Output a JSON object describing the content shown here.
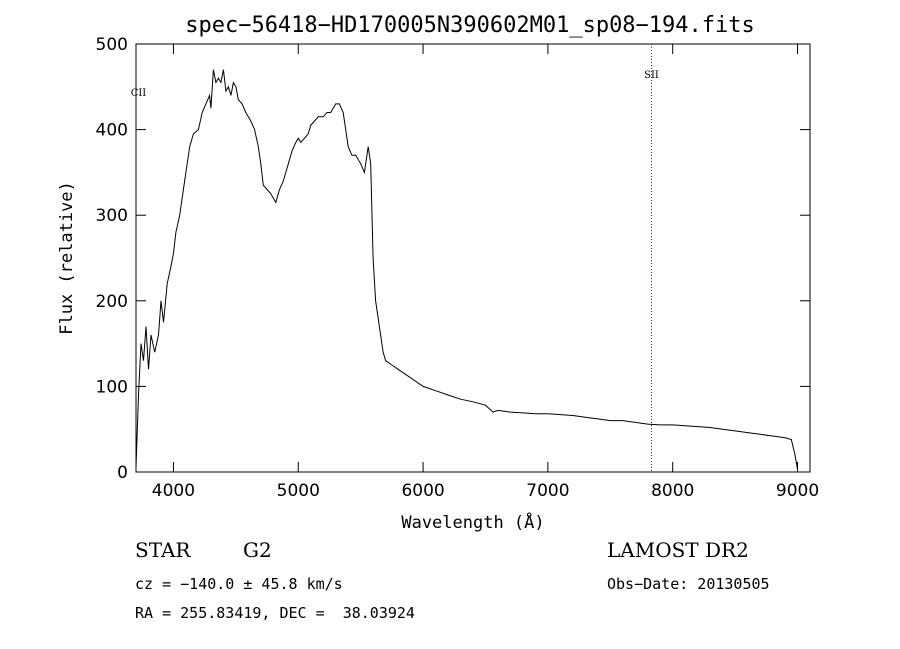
{
  "chart_data": {
    "type": "line",
    "title": "spec−56418−HD170005N390602M01_sp08−194.fits",
    "xlabel": "Wavelength (Å)",
    "ylabel": "Flux (relative)",
    "xlim": [
      3700,
      9100
    ],
    "ylim": [
      0,
      500
    ],
    "xticks": [
      4000,
      5000,
      6000,
      7000,
      8000,
      9000
    ],
    "yticks": [
      0,
      100,
      200,
      300,
      400,
      500
    ],
    "grid": false,
    "line_color": "#000000",
    "series": [
      {
        "x": [
          3700,
          3720,
          3740,
          3760,
          3780,
          3800,
          3820,
          3850,
          3880,
          3900,
          3920,
          3950,
          3980,
          4000,
          4020,
          4050,
          4080,
          4100,
          4130,
          4160,
          4200,
          4230,
          4260,
          4290,
          4300,
          4320,
          4340,
          4360,
          4380,
          4400,
          4420,
          4440,
          4460,
          4480,
          4500,
          4520,
          4550,
          4580,
          4600,
          4620,
          4650,
          4680,
          4700,
          4720,
          4750,
          4780,
          4800,
          4820,
          4850,
          4880,
          4900,
          4920,
          4950,
          4980,
          5000,
          5020,
          5050,
          5080,
          5100,
          5130,
          5160,
          5200,
          5230,
          5260,
          5300,
          5330,
          5360,
          5380,
          5400,
          5430,
          5460,
          5500,
          5530,
          5560,
          5580,
          5600,
          5620,
          5650,
          5680,
          5700,
          5750,
          5800,
          5850,
          5900,
          6000,
          6100,
          6200,
          6300,
          6400,
          6500,
          6560,
          6600,
          6700,
          6800,
          6900,
          7000,
          7100,
          7200,
          7300,
          7400,
          7500,
          7600,
          7700,
          7800,
          7900,
          8000,
          8100,
          8200,
          8300,
          8400,
          8500,
          8600,
          8700,
          8800,
          8900,
          8950,
          8980,
          9000
        ],
        "y": [
          5,
          90,
          150,
          130,
          170,
          120,
          160,
          140,
          160,
          200,
          175,
          220,
          240,
          255,
          280,
          300,
          330,
          350,
          380,
          395,
          400,
          420,
          430,
          440,
          425,
          470,
          455,
          460,
          455,
          470,
          445,
          450,
          440,
          455,
          450,
          435,
          430,
          420,
          415,
          410,
          400,
          380,
          360,
          335,
          330,
          325,
          320,
          315,
          330,
          340,
          350,
          360,
          375,
          385,
          390,
          385,
          390,
          395,
          405,
          410,
          415,
          415,
          420,
          420,
          430,
          430,
          420,
          400,
          380,
          370,
          370,
          360,
          350,
          380,
          360,
          250,
          200,
          170,
          140,
          130,
          125,
          120,
          115,
          110,
          100,
          95,
          90,
          85,
          82,
          78,
          70,
          72,
          70,
          69,
          68,
          68,
          67,
          66,
          64,
          62,
          60,
          60,
          58,
          56,
          55,
          55,
          54,
          53,
          52,
          50,
          48,
          46,
          44,
          42,
          40,
          38,
          20,
          3
        ]
      }
    ],
    "annotations": [
      {
        "label": "CII",
        "wavelength": 3720
      },
      {
        "label": "SII",
        "wavelength": 7830
      }
    ]
  },
  "info": {
    "object_type": "STAR",
    "subclass": "G2",
    "survey": "LAMOST DR2",
    "cz": "cz = −140.0 ± 45.8 km/s",
    "obs_date": "Obs−Date: 20130505",
    "coords": "RA = 255.83419, DEC =  38.03924"
  }
}
